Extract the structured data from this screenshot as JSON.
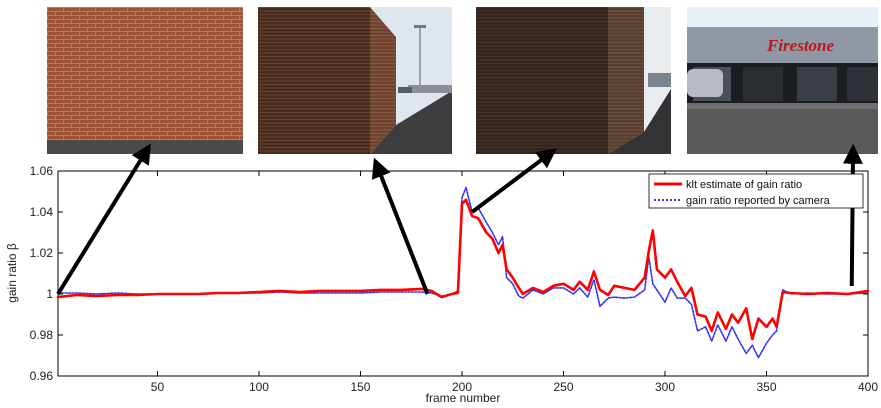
{
  "thumbnails": [
    {
      "name": "brick-wall-closeup",
      "sign_text": ""
    },
    {
      "name": "brick-corner-parking",
      "sign_text": ""
    },
    {
      "name": "brick-corner-dark",
      "sign_text": ""
    },
    {
      "name": "firestone-storefront",
      "sign_text": "Firestone"
    }
  ],
  "chart_data": {
    "type": "line",
    "title": "",
    "xlabel": "frame number",
    "ylabel": "gain ratio β",
    "xlim": [
      1,
      400
    ],
    "ylim": [
      0.96,
      1.06
    ],
    "xticks": [
      50,
      100,
      150,
      200,
      250,
      300,
      350,
      400
    ],
    "yticks": [
      0.96,
      0.98,
      1,
      1.02,
      1.04,
      1.06
    ],
    "ytick_labels": [
      "0.96",
      "0.98",
      "1",
      "1.02",
      "1.04",
      "1.06"
    ],
    "grid": false,
    "legend_position": "top-right",
    "series": [
      {
        "name": "klt estimate of gain ratio",
        "color": "#ff0000",
        "style": "solid",
        "x": [
          1,
          10,
          20,
          30,
          40,
          50,
          60,
          70,
          80,
          90,
          100,
          110,
          120,
          130,
          140,
          150,
          160,
          170,
          180,
          185,
          190,
          195,
          198,
          200,
          202,
          205,
          208,
          212,
          215,
          218,
          220,
          222,
          225,
          228,
          230,
          235,
          240,
          245,
          250,
          255,
          258,
          262,
          265,
          268,
          272,
          275,
          280,
          285,
          290,
          292,
          294,
          296,
          300,
          303,
          306,
          310,
          313,
          316,
          320,
          323,
          326,
          330,
          333,
          336,
          340,
          343,
          346,
          350,
          353,
          355,
          358,
          362,
          370,
          380,
          390,
          400
        ],
        "y": [
          0.9985,
          0.9995,
          0.999,
          0.9995,
          0.9995,
          1.0,
          1.0,
          1.0,
          1.0005,
          1.0005,
          1.001,
          1.0015,
          1.001,
          1.0015,
          1.0015,
          1.0015,
          1.002,
          1.002,
          1.0025,
          1.0015,
          0.9985,
          1.0,
          1.0005,
          1.044,
          1.046,
          1.038,
          1.037,
          1.03,
          1.027,
          1.02,
          1.024,
          1.012,
          1.008,
          1.003,
          1.0,
          1.003,
          1.001,
          1.004,
          1.005,
          1.002,
          1.006,
          1.002,
          1.011,
          1.002,
          0.9995,
          1.004,
          1.003,
          1.002,
          1.008,
          1.021,
          1.031,
          1.012,
          1.008,
          1.012,
          1.006,
          0.999,
          1.003,
          0.99,
          0.989,
          0.982,
          0.991,
          0.983,
          0.99,
          0.986,
          0.993,
          0.978,
          0.988,
          0.984,
          0.988,
          0.984,
          1.001,
          1.0005,
          1.0,
          1.0005,
          1.0,
          1.0015
        ]
      },
      {
        "name": "gain ratio reported by camera",
        "color": "#3333ff",
        "style": "dotted",
        "x": [
          1,
          10,
          20,
          30,
          40,
          50,
          60,
          70,
          80,
          90,
          100,
          110,
          120,
          130,
          140,
          150,
          160,
          170,
          180,
          185,
          190,
          195,
          198,
          200,
          202,
          205,
          208,
          212,
          215,
          218,
          220,
          222,
          225,
          228,
          230,
          235,
          240,
          245,
          250,
          255,
          258,
          262,
          265,
          268,
          272,
          275,
          280,
          285,
          290,
          292,
          294,
          296,
          300,
          303,
          306,
          310,
          313,
          316,
          320,
          323,
          326,
          330,
          333,
          336,
          340,
          343,
          346,
          350,
          353,
          355,
          358,
          362,
          370,
          380,
          390,
          400
        ],
        "y": [
          1.0005,
          1.0005,
          1.0,
          1.0005,
          1.0,
          1.0,
          1.0,
          1.0,
          1.0005,
          1.0005,
          1.0005,
          1.001,
          1.0005,
          1.0005,
          1.0005,
          1.0005,
          1.001,
          1.001,
          1.001,
          1.0005,
          0.999,
          1.0,
          1.0015,
          1.047,
          1.052,
          1.04,
          1.042,
          1.035,
          1.03,
          1.024,
          1.028,
          1.008,
          1.005,
          0.999,
          0.998,
          1.002,
          1.0,
          1.003,
          1.003,
          1.0,
          1.003,
          0.9985,
          1.007,
          0.994,
          0.998,
          0.9985,
          0.998,
          0.9985,
          1.002,
          1.018,
          1.005,
          1.002,
          0.996,
          1.003,
          0.998,
          0.998,
          0.995,
          0.982,
          0.984,
          0.977,
          0.985,
          0.977,
          0.984,
          0.978,
          0.971,
          0.975,
          0.969,
          0.976,
          0.98,
          0.982,
          1.002,
          1.0,
          1.0005,
          1.0,
          1.0,
          1.0005
        ]
      }
    ],
    "annotations": [
      {
        "frame": 1,
        "beta": 1.0,
        "points_to": "brick-wall-closeup"
      },
      {
        "frame": 183,
        "beta": 1.0,
        "points_to": "brick-corner-parking"
      },
      {
        "frame": 205,
        "beta": 1.04,
        "points_to": "brick-corner-dark"
      },
      {
        "frame": 392,
        "beta": 1.0,
        "points_to": "firestone-storefront"
      }
    ]
  }
}
